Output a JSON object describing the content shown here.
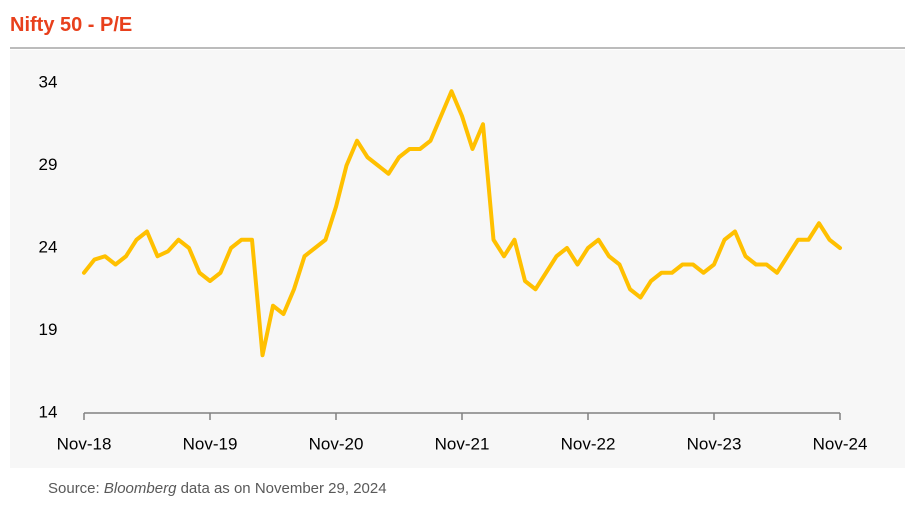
{
  "chart_data": {
    "type": "line",
    "title": "Nifty 50 - P/E",
    "x": [
      "2018-11",
      "2018-12",
      "2019-01",
      "2019-02",
      "2019-03",
      "2019-04",
      "2019-05",
      "2019-06",
      "2019-07",
      "2019-08",
      "2019-09",
      "2019-10",
      "2019-11",
      "2019-12",
      "2020-01",
      "2020-02",
      "2020-03",
      "2020-04",
      "2020-05",
      "2020-06",
      "2020-07",
      "2020-08",
      "2020-09",
      "2020-10",
      "2020-11",
      "2020-12",
      "2021-01",
      "2021-02",
      "2021-03",
      "2021-04",
      "2021-05",
      "2021-06",
      "2021-07",
      "2021-08",
      "2021-09",
      "2021-10",
      "2021-11",
      "2021-12",
      "2022-01",
      "2022-02",
      "2022-03",
      "2022-04",
      "2022-05",
      "2022-06",
      "2022-07",
      "2022-08",
      "2022-09",
      "2022-10",
      "2022-11",
      "2022-12",
      "2023-01",
      "2023-02",
      "2023-03",
      "2023-04",
      "2023-05",
      "2023-06",
      "2023-07",
      "2023-08",
      "2023-09",
      "2023-10",
      "2023-11",
      "2023-12",
      "2024-01",
      "2024-02",
      "2024-03",
      "2024-04",
      "2024-05",
      "2024-06",
      "2024-07",
      "2024-08",
      "2024-09",
      "2024-10",
      "2024-11"
    ],
    "values": [
      22.5,
      23.3,
      23.5,
      23.0,
      23.5,
      24.5,
      25.0,
      23.5,
      23.8,
      24.5,
      24.0,
      22.5,
      22.0,
      22.5,
      24.0,
      24.5,
      24.5,
      17.5,
      20.5,
      20.0,
      21.5,
      23.5,
      24.0,
      24.5,
      26.5,
      29.0,
      30.5,
      29.5,
      29.0,
      28.5,
      29.5,
      30.0,
      30.0,
      30.5,
      32.0,
      33.5,
      32.0,
      30.0,
      31.5,
      24.5,
      23.5,
      24.5,
      22.0,
      21.5,
      22.5,
      23.5,
      24.0,
      23.0,
      24.0,
      24.5,
      23.5,
      23.0,
      21.5,
      21.0,
      22.0,
      22.5,
      22.5,
      23.0,
      23.0,
      22.5,
      23.0,
      24.5,
      25.0,
      23.5,
      23.0,
      23.0,
      22.5,
      23.5,
      24.5,
      24.5,
      25.5,
      24.5,
      24.0
    ],
    "color": "#ffc000",
    "xlim": [
      "2018-11",
      "2024-11"
    ],
    "xticks": [
      {
        "value": "2018-11",
        "label": "Nov-18"
      },
      {
        "value": "2019-11",
        "label": "Nov-19"
      },
      {
        "value": "2020-11",
        "label": "Nov-20"
      },
      {
        "value": "2021-11",
        "label": "Nov-21"
      },
      {
        "value": "2022-11",
        "label": "Nov-22"
      },
      {
        "value": "2023-11",
        "label": "Nov-23"
      },
      {
        "value": "2024-11",
        "label": "Nov-24"
      }
    ],
    "ylim": [
      14,
      34
    ],
    "yticks": [
      14,
      19,
      24,
      29,
      34
    ],
    "grid": false,
    "source": {
      "label": "Source:",
      "publisher": "Bloomberg",
      "note": "data as on November 29, 2024"
    }
  }
}
